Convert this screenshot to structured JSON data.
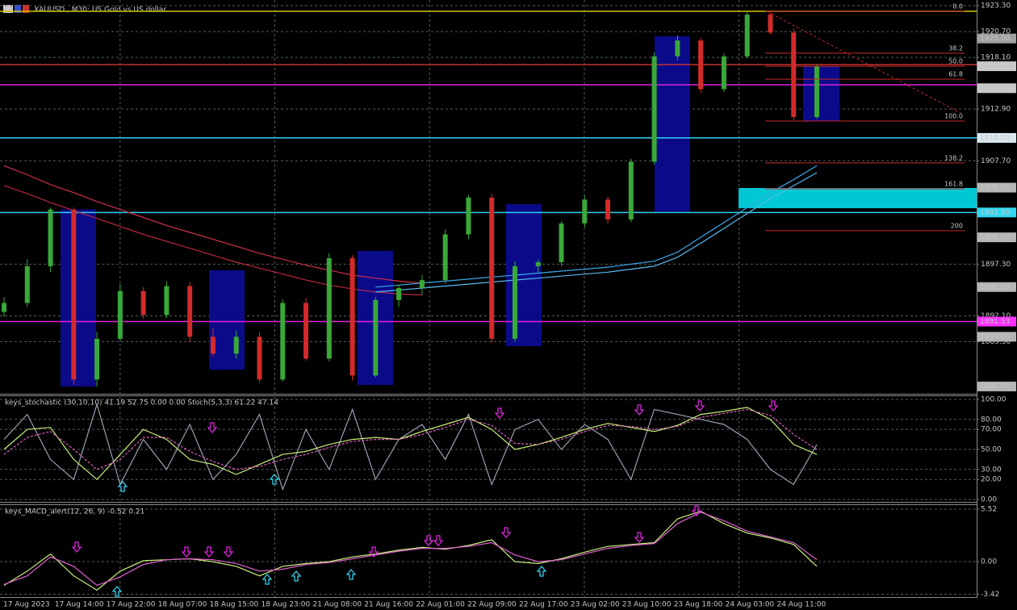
{
  "title": "XAUUSD., M30:  US Gold vs US dollar",
  "x_axis": {
    "labels": [
      "17 Aug 2023",
      "17 Aug 14:00",
      "17 Aug 22:00",
      "18 Aug 07:00",
      "18 Aug 15:00",
      "18 Aug 23:00",
      "21 Aug 08:00",
      "21 Aug 16:00",
      "22 Aug 01:00",
      "22 Aug 09:00",
      "22 Aug 17:00",
      "23 Aug 02:00",
      "23 Aug 10:00",
      "23 Aug 18:00",
      "24 Aug 03:00",
      "24 Aug 11:00"
    ]
  },
  "chart_data": [
    {
      "type": "candlestick",
      "ylim": [
        1884.35,
        1923.87
      ],
      "yticks": [
        {
          "value": 1923.3,
          "label": "1923.30"
        },
        {
          "value": 1920.7,
          "label": "1920.70"
        },
        {
          "value": 1918.1,
          "label": "1918.10"
        },
        {
          "value": 1912.9,
          "label": "1912.90"
        },
        {
          "value": 1907.7,
          "label": "1907.70"
        },
        {
          "value": 1897.3,
          "label": "1897.30"
        },
        {
          "value": 1892.1,
          "label": "1892.10"
        },
        {
          "value": 1889.5,
          "label": "1889.50"
        }
      ],
      "grid": true,
      "up_color": "#3aa83a",
      "down_color": "#d42a2a",
      "open": [
        1892.5,
        1893.4,
        1897.1,
        1902.8,
        1885.7,
        1889.8,
        1894.6,
        1892.2,
        1895.1,
        1890.0,
        1888.3,
        1890.0,
        1885.7,
        1893.4,
        1887.8,
        1897.9,
        1886.1,
        1893.7,
        1894.9,
        1895.7,
        1900.3,
        1904.0,
        1889.8,
        1897.1,
        1897.5,
        1901.4,
        1903.8,
        1901.8,
        1907.6,
        1918.2,
        1919.8,
        1914.9,
        1918.2,
        1922.4,
        1920.6,
        1912.1
      ],
      "high": [
        1894.0,
        1897.8,
        1903.0,
        1903.0,
        1890.5,
        1895.3,
        1895.0,
        1895.6,
        1895.5,
        1890.8,
        1890.6,
        1890.5,
        1893.8,
        1893.9,
        1898.4,
        1898.2,
        1894.0,
        1895.2,
        1896.2,
        1900.8,
        1904.3,
        1904.4,
        1897.6,
        1897.8,
        1901.6,
        1904.2,
        1904.1,
        1907.9,
        1918.6,
        1920.3,
        1920.1,
        1918.5,
        1922.7,
        1922.6,
        1921.0,
        1917.4
      ],
      "low": [
        1892.0,
        1893.0,
        1896.5,
        1885.2,
        1885.0,
        1889.5,
        1891.8,
        1891.9,
        1889.5,
        1888.0,
        1887.8,
        1885.4,
        1885.5,
        1887.6,
        1887.5,
        1885.6,
        1885.9,
        1893.0,
        1894.2,
        1895.3,
        1899.8,
        1889.4,
        1889.5,
        1896.5,
        1897.1,
        1901.0,
        1901.4,
        1901.5,
        1907.3,
        1917.8,
        1914.5,
        1914.6,
        1918.0,
        1920.4,
        1911.8,
        1911.9
      ],
      "close": [
        1893.4,
        1897.1,
        1902.8,
        1885.7,
        1889.8,
        1894.6,
        1892.2,
        1895.1,
        1890.0,
        1888.3,
        1890.0,
        1885.7,
        1893.4,
        1887.8,
        1897.9,
        1886.1,
        1893.7,
        1894.9,
        1895.7,
        1900.3,
        1904.0,
        1889.8,
        1897.1,
        1897.5,
        1901.4,
        1903.8,
        1901.8,
        1907.6,
        1918.2,
        1919.8,
        1914.9,
        1918.2,
        1922.4,
        1920.6,
        1912.1,
        1917.21
      ],
      "ma": [
        {
          "color": "#d0304a",
          "values": [
            1907.2,
            1906.3,
            1905.3,
            1904.5,
            1903.6,
            1902.8,
            1902.0,
            1901.2,
            1900.5,
            1899.8,
            1899.1,
            1898.4,
            1897.8,
            1897.2,
            1896.7,
            1896.2,
            1895.9,
            1895.6,
            1895.4,
            null,
            null,
            null,
            null,
            null,
            null,
            null,
            null,
            null,
            null,
            null,
            null,
            null,
            null,
            null,
            null,
            null
          ]
        },
        {
          "color": "#b82840",
          "values": [
            1905.2,
            1904.4,
            1903.5,
            1902.7,
            1901.9,
            1901.1,
            1900.3,
            1899.6,
            1898.9,
            1898.2,
            1897.5,
            1896.9,
            1896.3,
            1895.7,
            1895.2,
            1894.8,
            1894.5,
            1894.3,
            1894.2,
            null,
            null,
            null,
            null,
            null,
            null,
            null,
            null,
            null,
            null,
            null,
            null,
            null,
            null,
            null,
            null,
            null
          ]
        },
        {
          "color": "#3aa8e8",
          "values": [
            null,
            null,
            null,
            null,
            null,
            null,
            null,
            null,
            null,
            null,
            null,
            null,
            null,
            null,
            null,
            null,
            1895.0,
            1895.2,
            1895.4,
            1895.6,
            1895.8,
            1896.0,
            1896.2,
            1896.4,
            1896.6,
            1896.8,
            1897.0,
            1897.3,
            1897.6,
            1898.5,
            1900.0,
            1901.5,
            1903.0,
            1904.5,
            1905.8,
            1907.2
          ]
        },
        {
          "color": "#5ab8f0",
          "values": [
            null,
            null,
            null,
            null,
            null,
            null,
            null,
            null,
            null,
            null,
            null,
            null,
            null,
            null,
            null,
            null,
            1894.5,
            1894.7,
            1894.9,
            1895.1,
            1895.3,
            1895.5,
            1895.7,
            1895.9,
            1896.1,
            1896.3,
            1896.5,
            1896.8,
            1897.1,
            1898.0,
            1899.4,
            1900.9,
            1902.4,
            1903.9,
            1905.2,
            1906.5
          ]
        }
      ],
      "zones": [
        {
          "high": 1902.8,
          "low": 1885.0,
          "color": "#0b0b8a"
        },
        {
          "high": 1896.68,
          "low": 1886.69,
          "color": "#0b0b8a"
        },
        {
          "high": 1898.63,
          "low": 1885.15,
          "color": "#0b0b8a"
        },
        {
          "high": 1903.33,
          "low": 1889.05,
          "color": "#0b0b8a"
        },
        {
          "high": 1920.22,
          "low": 1902.6,
          "color": "#0b0b8a"
        },
        {
          "high": 1917.21,
          "low": 1911.69,
          "color": "#0b0b8a"
        },
        {
          "high": 1904.96,
          "low": 1902.93,
          "color": "#00c8d2"
        }
      ],
      "hlines": [
        {
          "value": 1922.73,
          "color": "#d4c400"
        },
        {
          "value": 1917.37,
          "color": "#c83030"
        },
        {
          "value": 1915.34,
          "color": "#e020e0"
        },
        {
          "value": 1910.0,
          "color": "#30d0f0"
        },
        {
          "value": 1902.5,
          "color": "#30d0f0"
        },
        {
          "value": 1891.53,
          "color": "#e020e0"
        }
      ],
      "fibonacci": {
        "color": "#c82828",
        "levels": [
          {
            "value": 0,
            "label": "0.0"
          },
          38.2,
          {
            "value": 50,
            "label": "50.0"
          },
          61.8,
          {
            "value": 100,
            "label": "100.0"
          },
          138.2,
          161.8,
          200
        ],
        "prices": [
          1922.73,
          1918.52,
          1917.21,
          1915.91,
          1911.7,
          1907.49,
          1904.88,
          1900.67
        ]
      },
      "price_tags": [
        {
          "value": 1920.0,
          "label": "1920.00",
          "color": "#a0a0a0"
        },
        {
          "value": 1917.21,
          "color": "#c8c8c8"
        },
        {
          "value": 1915.0,
          "label": "1915.00",
          "color": "#c8c8c8"
        },
        {
          "value": 1910.0,
          "label": "1910.00",
          "color": "#d8e8f0"
        },
        {
          "value": 1905.0,
          "label": "1905.00",
          "color": "#b4b4b4"
        },
        {
          "value": 1902.5,
          "label": "1902.50",
          "color": "#30d8f0"
        },
        {
          "value": 1900.0,
          "label": "1900.00",
          "color": "#b4b4b4"
        },
        {
          "value": 1895.0,
          "label": "1895.00",
          "color": "#b4b4b4"
        },
        {
          "value": 1891.53,
          "color": "#ff30ff"
        },
        {
          "value": 1890.0,
          "label": "1890.00",
          "color": "#b4b4b4"
        },
        {
          "value": 1885.0,
          "label": "1885.00",
          "color": "#b4b4b4"
        }
      ]
    },
    {
      "type": "line",
      "title": "keys_stochastic (30,10,10) 41.19 52.75 0.00 0.00 Stoch(5,3,3) 61.22 47.14",
      "ylim": [
        -2.4,
        104
      ],
      "yticks": [
        {
          "value": 100,
          "label": "100.00"
        },
        {
          "value": 80,
          "label": "80.00"
        },
        {
          "value": 70,
          "label": "70.00"
        },
        {
          "value": 50,
          "label": "50.00"
        },
        {
          "value": 30,
          "label": "30.00"
        },
        {
          "value": 20,
          "label": "20.00"
        },
        {
          "value": 0,
          "label": "0.00"
        }
      ],
      "grid": true,
      "series": [
        {
          "color": "#9aa0b0",
          "values": [
            60,
            85,
            40,
            20,
            95,
            15,
            60,
            30,
            75,
            20,
            45,
            85,
            10,
            70,
            30,
            90,
            20,
            60,
            75,
            40,
            85,
            15,
            70,
            80,
            50,
            75,
            60,
            20,
            90,
            85,
            80,
            75,
            60,
            30,
            15,
            55
          ]
        },
        {
          "color": "#c8f078",
          "values": [
            50,
            70,
            72,
            40,
            20,
            45,
            70,
            60,
            40,
            35,
            25,
            35,
            45,
            48,
            55,
            60,
            62,
            60,
            68,
            75,
            82,
            70,
            50,
            55,
            62,
            70,
            76,
            72,
            68,
            74,
            85,
            88,
            92,
            80,
            55,
            45
          ]
        },
        {
          "color": "#e060c0",
          "dashed": true,
          "values": [
            45,
            62,
            68,
            50,
            30,
            40,
            62,
            62,
            48,
            38,
            30,
            33,
            40,
            45,
            52,
            58,
            60,
            60,
            65,
            72,
            80,
            74,
            56,
            55,
            60,
            68,
            74,
            73,
            70,
            73,
            82,
            86,
            90,
            84,
            65,
            50
          ]
        }
      ]
    },
    {
      "type": "line",
      "title": "keys_MACD_alert(12, 26, 9) -0.52 0.21",
      "ylim": [
        -3.73,
        6.03
      ],
      "yticks": [
        5.52,
        {
          "value": 0,
          "label": "0.00"
        },
        -3.42
      ],
      "grid": true,
      "series": [
        {
          "color": "#c8f078",
          "values": [
            -2.5,
            -1,
            0.8,
            -1.5,
            -3,
            -1,
            0.1,
            0.2,
            0.3,
            0,
            -0.5,
            -1.5,
            -0.5,
            -0.2,
            0,
            0.5,
            0.8,
            1.2,
            1.5,
            1.3,
            1.7,
            2.3,
            0,
            -0.2,
            0.3,
            1,
            1.6,
            1.8,
            2,
            4.5,
            5.3,
            4,
            3,
            2.5,
            1.8,
            -0.5
          ]
        },
        {
          "color": "#e060d0",
          "values": [
            -2.4,
            -1.5,
            0.5,
            -0.5,
            -2.5,
            -1.6,
            -0.3,
            0.2,
            0.3,
            0.2,
            -0.2,
            -1.0,
            -0.8,
            -0.3,
            -0.1,
            0.3,
            0.7,
            1.1,
            1.4,
            1.4,
            1.6,
            2.0,
            0.7,
            0,
            0.2,
            0.8,
            1.4,
            1.7,
            1.9,
            4.0,
            5.2,
            4.3,
            3.2,
            2.6,
            2.0,
            0.2
          ]
        }
      ]
    }
  ]
}
